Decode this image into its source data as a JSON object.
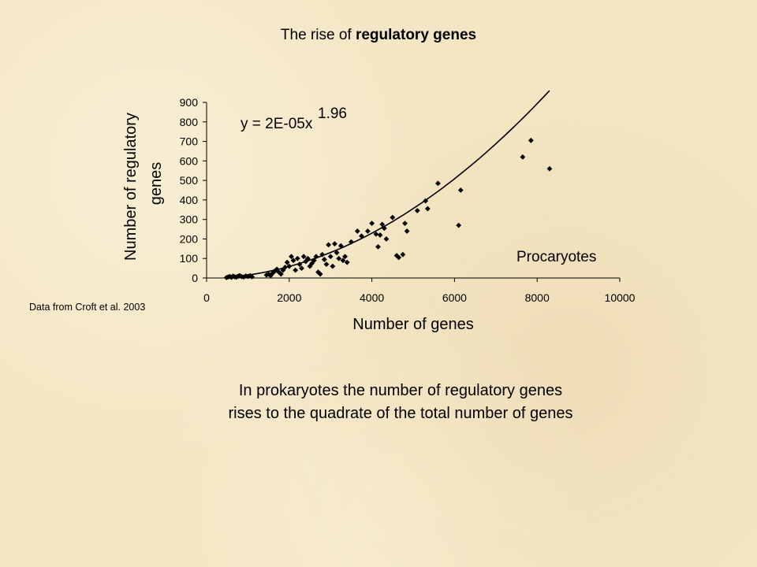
{
  "title": {
    "prefix": "The rise of ",
    "bold": "regulatory genes"
  },
  "source_note": "Data from Croft et al. 2003",
  "caption": {
    "line1": "In prokaryotes the number of regulatory genes",
    "line2": "rises to the quadrate of the total number of genes"
  },
  "chart_data": {
    "type": "scatter",
    "title": "",
    "xlabel": "Number of genes",
    "ylabel_lines": [
      "Number of regulatory",
      "genes"
    ],
    "xlim": [
      0,
      10000
    ],
    "ylim": [
      0,
      900
    ],
    "x_ticks": [
      0,
      2000,
      4000,
      6000,
      8000,
      10000
    ],
    "y_ticks": [
      0,
      100,
      200,
      300,
      400,
      500,
      600,
      700,
      800,
      900
    ],
    "grid": false,
    "legend": "none",
    "annotations": {
      "equation_main": "y = 2E-05x",
      "equation_exponent": "1.96",
      "group_label": "Procaryotes"
    },
    "trendline": {
      "coefficient": 2e-05,
      "exponent": 1.96,
      "x_range": [
        500,
        8300
      ]
    },
    "series": [
      {
        "points": [
          [
            480,
            2
          ],
          [
            520,
            5
          ],
          [
            560,
            8
          ],
          [
            600,
            3
          ],
          [
            640,
            10
          ],
          [
            680,
            6
          ],
          [
            720,
            4
          ],
          [
            760,
            9
          ],
          [
            800,
            12
          ],
          [
            850,
            7
          ],
          [
            900,
            5
          ],
          [
            950,
            10
          ],
          [
            1000,
            8
          ],
          [
            1050,
            12
          ],
          [
            1100,
            6
          ],
          [
            1450,
            15
          ],
          [
            1500,
            20
          ],
          [
            1550,
            12
          ],
          [
            1600,
            25
          ],
          [
            1650,
            35
          ],
          [
            1700,
            45
          ],
          [
            1750,
            30
          ],
          [
            1800,
            20
          ],
          [
            1850,
            40
          ],
          [
            1900,
            55
          ],
          [
            1950,
            80
          ],
          [
            2000,
            60
          ],
          [
            2050,
            110
          ],
          [
            2100,
            90
          ],
          [
            2150,
            40
          ],
          [
            2200,
            100
          ],
          [
            2250,
            70
          ],
          [
            2300,
            50
          ],
          [
            2350,
            110
          ],
          [
            2400,
            85
          ],
          [
            2450,
            100
          ],
          [
            2500,
            60
          ],
          [
            2550,
            75
          ],
          [
            2600,
            90
          ],
          [
            2650,
            110
          ],
          [
            2700,
            30
          ],
          [
            2750,
            20
          ],
          [
            2800,
            120
          ],
          [
            2850,
            95
          ],
          [
            2900,
            70
          ],
          [
            2950,
            170
          ],
          [
            3000,
            110
          ],
          [
            3050,
            60
          ],
          [
            3100,
            175
          ],
          [
            3150,
            130
          ],
          [
            3200,
            100
          ],
          [
            3250,
            165
          ],
          [
            3300,
            90
          ],
          [
            3350,
            110
          ],
          [
            3400,
            80
          ],
          [
            3500,
            185
          ],
          [
            3650,
            240
          ],
          [
            3750,
            215
          ],
          [
            3900,
            240
          ],
          [
            4000,
            280
          ],
          [
            4100,
            225
          ],
          [
            4150,
            160
          ],
          [
            4200,
            220
          ],
          [
            4250,
            275
          ],
          [
            4300,
            255
          ],
          [
            4350,
            200
          ],
          [
            4500,
            310
          ],
          [
            4600,
            115
          ],
          [
            4650,
            105
          ],
          [
            4750,
            120
          ],
          [
            4800,
            280
          ],
          [
            4850,
            240
          ],
          [
            5100,
            345
          ],
          [
            5300,
            395
          ],
          [
            5350,
            355
          ],
          [
            5600,
            485
          ],
          [
            6100,
            270
          ],
          [
            6150,
            450
          ],
          [
            7650,
            620
          ],
          [
            7850,
            705
          ],
          [
            8300,
            560
          ]
        ]
      }
    ]
  }
}
